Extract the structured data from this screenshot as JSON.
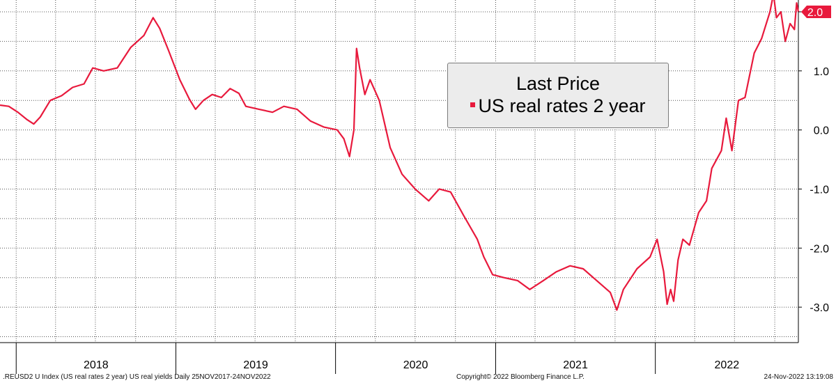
{
  "chart_data": {
    "type": "line",
    "title": "",
    "xlabel": "",
    "ylabel": "",
    "ylim": [
      -3.6,
      2.2
    ],
    "yticks": [
      2.0,
      1.0,
      0.0,
      -1.0,
      -2.0,
      -3.0
    ],
    "ytick_labels": [
      "2.0",
      "1.0",
      "0.0",
      "-1.0",
      "-2.0",
      "-3.0"
    ],
    "xticks": [
      "2018",
      "2019",
      "2020",
      "2021",
      "2022"
    ],
    "xlim": [
      "2017-11-25",
      "2022-11-24"
    ],
    "grid": true,
    "series": [
      {
        "name": "US real rates 2 year",
        "color": "#e8193c",
        "last_value": 2.0,
        "last_label": "2.0",
        "points": [
          [
            "2017-11-25",
            0.42
          ],
          [
            "2017-12-15",
            0.4
          ],
          [
            "2018-01-05",
            0.3
          ],
          [
            "2018-01-25",
            0.18
          ],
          [
            "2018-02-10",
            0.1
          ],
          [
            "2018-02-25",
            0.22
          ],
          [
            "2018-03-20",
            0.5
          ],
          [
            "2018-04-15",
            0.58
          ],
          [
            "2018-05-10",
            0.72
          ],
          [
            "2018-06-05",
            0.78
          ],
          [
            "2018-06-25",
            1.05
          ],
          [
            "2018-07-20",
            1.0
          ],
          [
            "2018-08-20",
            1.05
          ],
          [
            "2018-09-20",
            1.4
          ],
          [
            "2018-10-20",
            1.6
          ],
          [
            "2018-11-10",
            1.9
          ],
          [
            "2018-11-25",
            1.72
          ],
          [
            "2018-12-15",
            1.35
          ],
          [
            "2019-01-10",
            0.85
          ],
          [
            "2019-02-01",
            0.52
          ],
          [
            "2019-02-15",
            0.35
          ],
          [
            "2019-03-05",
            0.5
          ],
          [
            "2019-03-25",
            0.6
          ],
          [
            "2019-04-15",
            0.55
          ],
          [
            "2019-05-05",
            0.7
          ],
          [
            "2019-05-25",
            0.62
          ],
          [
            "2019-06-10",
            0.4
          ],
          [
            "2019-07-10",
            0.35
          ],
          [
            "2019-08-10",
            0.3
          ],
          [
            "2019-09-05",
            0.4
          ],
          [
            "2019-10-05",
            0.35
          ],
          [
            "2019-11-05",
            0.15
          ],
          [
            "2019-12-05",
            0.05
          ],
          [
            "2020-01-05",
            0.0
          ],
          [
            "2020-01-20",
            -0.15
          ],
          [
            "2020-02-02",
            -0.45
          ],
          [
            "2020-02-12",
            0.0
          ],
          [
            "2020-02-18",
            1.38
          ],
          [
            "2020-02-25",
            1.05
          ],
          [
            "2020-03-08",
            0.6
          ],
          [
            "2020-03-20",
            0.85
          ],
          [
            "2020-04-10",
            0.5
          ],
          [
            "2020-05-05",
            -0.3
          ],
          [
            "2020-06-01",
            -0.75
          ],
          [
            "2020-07-01",
            -1.0
          ],
          [
            "2020-08-01",
            -1.2
          ],
          [
            "2020-08-25",
            -1.0
          ],
          [
            "2020-09-20",
            -1.05
          ],
          [
            "2020-10-20",
            -1.45
          ],
          [
            "2020-11-20",
            -1.85
          ],
          [
            "2020-12-05",
            -2.15
          ],
          [
            "2020-12-25",
            -2.45
          ],
          [
            "2021-01-20",
            -2.5
          ],
          [
            "2021-02-20",
            -2.55
          ],
          [
            "2021-03-20",
            -2.7
          ],
          [
            "2021-04-20",
            -2.55
          ],
          [
            "2021-05-20",
            -2.4
          ],
          [
            "2021-06-20",
            -2.3
          ],
          [
            "2021-07-20",
            -2.35
          ],
          [
            "2021-08-20",
            -2.55
          ],
          [
            "2021-09-20",
            -2.75
          ],
          [
            "2021-10-05",
            -3.05
          ],
          [
            "2021-10-20",
            -2.7
          ],
          [
            "2021-11-20",
            -2.35
          ],
          [
            "2021-12-20",
            -2.15
          ],
          [
            "2022-01-05",
            -1.85
          ],
          [
            "2022-01-20",
            -2.4
          ],
          [
            "2022-01-28",
            -2.95
          ],
          [
            "2022-02-05",
            -2.7
          ],
          [
            "2022-02-12",
            -2.9
          ],
          [
            "2022-02-22",
            -2.2
          ],
          [
            "2022-03-05",
            -1.85
          ],
          [
            "2022-03-20",
            -1.95
          ],
          [
            "2022-04-10",
            -1.4
          ],
          [
            "2022-04-28",
            -1.2
          ],
          [
            "2022-05-10",
            -0.65
          ],
          [
            "2022-06-01",
            -0.35
          ],
          [
            "2022-06-12",
            0.2
          ],
          [
            "2022-06-25",
            -0.35
          ],
          [
            "2022-07-10",
            0.5
          ],
          [
            "2022-07-25",
            0.55
          ],
          [
            "2022-08-15",
            1.3
          ],
          [
            "2022-09-01",
            1.55
          ],
          [
            "2022-09-20",
            2.0
          ],
          [
            "2022-09-28",
            2.3
          ],
          [
            "2022-10-05",
            1.9
          ],
          [
            "2022-10-15",
            2.0
          ],
          [
            "2022-10-25",
            1.5
          ],
          [
            "2022-11-05",
            1.8
          ],
          [
            "2022-11-15",
            1.7
          ],
          [
            "2022-11-20",
            2.15
          ],
          [
            "2022-11-24",
            2.0
          ]
        ]
      }
    ]
  },
  "legend": {
    "title": "Last Price",
    "series_label": "US real rates 2 year",
    "swatch_color": "#e8193c"
  },
  "footer": {
    "left": ".REUSD2 U Index (US real rates 2 year) US real yields  Daily 25NOV2017-24NOV2022",
    "center": "Copyright© 2022 Bloomberg Finance L.P.",
    "right": "24-Nov-2022 13:19:08"
  }
}
